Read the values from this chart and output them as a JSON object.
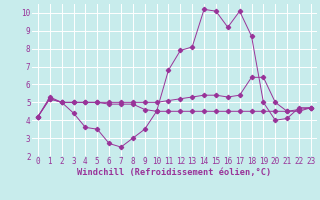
{
  "xlabel": "Windchill (Refroidissement éolien,°C)",
  "bg_color": "#c8ecec",
  "grid_color": "#ffffff",
  "line_color": "#993399",
  "xlim": [
    -0.5,
    23.5
  ],
  "ylim": [
    2,
    10.5
  ],
  "xticks": [
    0,
    1,
    2,
    3,
    4,
    5,
    6,
    7,
    8,
    9,
    10,
    11,
    12,
    13,
    14,
    15,
    16,
    17,
    18,
    19,
    20,
    21,
    22,
    23
  ],
  "yticks": [
    2,
    3,
    4,
    5,
    6,
    7,
    8,
    9,
    10
  ],
  "line1_x": [
    0,
    1,
    2,
    3,
    4,
    5,
    6,
    7,
    8,
    9,
    10,
    11,
    12,
    13,
    14,
    15,
    16,
    17,
    18,
    19,
    20,
    21,
    22,
    23
  ],
  "line1_y": [
    4.2,
    5.3,
    5.0,
    4.4,
    3.6,
    3.5,
    2.7,
    2.5,
    3.0,
    3.5,
    4.5,
    6.8,
    7.9,
    8.1,
    10.2,
    10.1,
    9.2,
    10.1,
    8.7,
    5.0,
    4.0,
    4.1,
    4.7,
    4.7
  ],
  "line2_x": [
    0,
    1,
    2,
    3,
    4,
    5,
    6,
    7,
    8,
    9,
    10,
    11,
    12,
    13,
    14,
    15,
    16,
    17,
    18,
    19,
    20,
    21,
    22,
    23
  ],
  "line2_y": [
    4.2,
    5.2,
    5.0,
    5.0,
    5.0,
    5.0,
    5.0,
    5.0,
    5.0,
    5.0,
    5.0,
    5.1,
    5.2,
    5.3,
    5.4,
    5.4,
    5.3,
    5.4,
    6.4,
    6.4,
    5.0,
    4.5,
    4.6,
    4.7
  ],
  "line3_x": [
    0,
    1,
    2,
    3,
    4,
    5,
    6,
    7,
    8,
    9,
    10,
    11,
    12,
    13,
    14,
    15,
    16,
    17,
    18,
    19,
    20,
    21,
    22,
    23
  ],
  "line3_y": [
    4.2,
    5.2,
    5.0,
    5.0,
    5.0,
    5.0,
    4.9,
    4.9,
    4.9,
    4.6,
    4.5,
    4.5,
    4.5,
    4.5,
    4.5,
    4.5,
    4.5,
    4.5,
    4.5,
    4.5,
    4.5,
    4.5,
    4.5,
    4.7
  ],
  "font_family": "monospace",
  "tick_fontsize": 5.5,
  "xlabel_fontsize": 6.2
}
